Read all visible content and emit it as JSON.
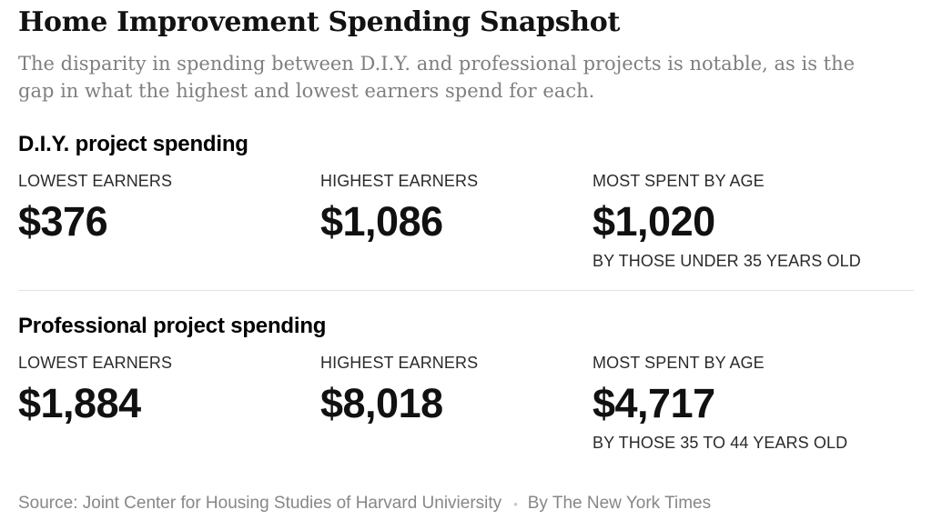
{
  "chart_data": {
    "type": "table",
    "title": "Home Improvement Spending Snapshot",
    "subtitle": "The disparity in spending between D.I.Y. and professional projects is notable, as is the gap in what the highest and lowest earners spend for each.",
    "sections": [
      {
        "title": "D.I.Y. project spending",
        "stats": [
          {
            "label": "LOWEST EARNERS",
            "value": 376,
            "display": "$376"
          },
          {
            "label": "HIGHEST EARNERS",
            "value": 1086,
            "display": "$1,086"
          },
          {
            "label": "MOST SPENT BY AGE",
            "value": 1020,
            "display": "$1,020",
            "caption": "BY THOSE UNDER 35 YEARS OLD"
          }
        ]
      },
      {
        "title": "Professional project spending",
        "stats": [
          {
            "label": "LOWEST EARNERS",
            "value": 1884,
            "display": "$1,884"
          },
          {
            "label": "HIGHEST EARNERS",
            "value": 8018,
            "display": "$8,018"
          },
          {
            "label": "MOST SPENT BY AGE",
            "value": 4717,
            "display": "$4,717",
            "caption": "BY THOSE 35 TO 44 YEARS OLD"
          }
        ]
      }
    ],
    "layout": {
      "grid": false,
      "legend": "none"
    }
  },
  "footer": {
    "source": "Source: Joint Center for Housing Studies of Harvard Univiersity",
    "separator": "•",
    "byline": "By The New York Times"
  },
  "colors": {
    "title": "#121212",
    "subtitle": "#7f7f7f",
    "section_title": "#000000",
    "label": "#2b2b2b",
    "value": "#111111",
    "divider": "#e2e2e2",
    "footer_text": "#878787",
    "footer_dot": "#c7c7c7",
    "background": "#ffffff"
  }
}
